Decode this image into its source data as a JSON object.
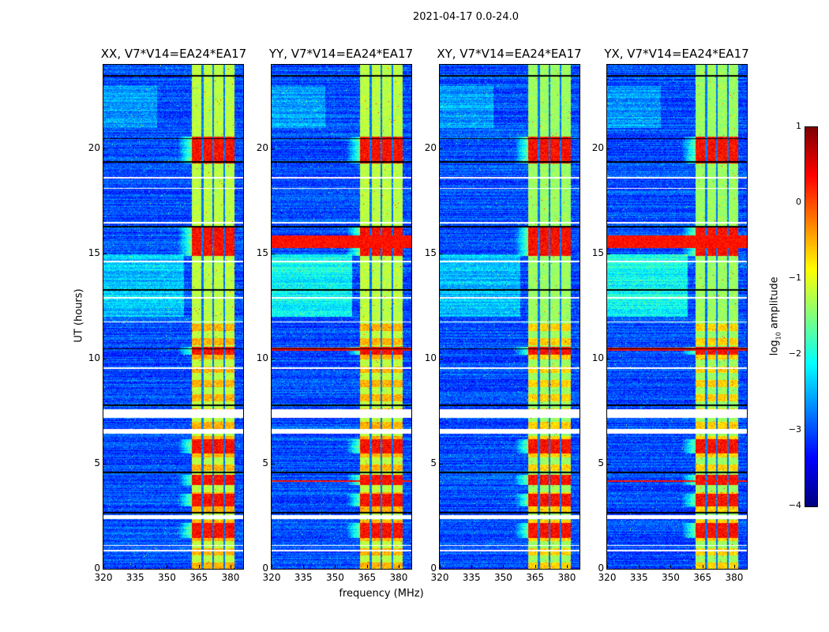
{
  "chart_data": {
    "type": "heatmap",
    "title": "2021-04-17 0.0-24.0",
    "xlabel": "frequency (MHz)",
    "ylabel": "UT (hours)",
    "xlim": [
      320,
      386
    ],
    "ylim": [
      0,
      24
    ],
    "xticks": [
      "320",
      "335",
      "350",
      "365",
      "380"
    ],
    "xtick_values": [
      320,
      335,
      350,
      365,
      380
    ],
    "yticks": [
      "0",
      "5",
      "10",
      "15",
      "20"
    ],
    "ytick_values": [
      0,
      5,
      10,
      15,
      20
    ],
    "panels": [
      {
        "title": "XX, V7*V14=EA24*EA17",
        "pol": "XX",
        "broadband_rfi_hours": []
      },
      {
        "title": "YY, V7*V14=EA24*EA17",
        "pol": "YY",
        "broadband_rfi_hours": [
          [
            15.3,
            15.9
          ],
          [
            10.4,
            10.55
          ],
          [
            4.15,
            4.25
          ]
        ]
      },
      {
        "title": "XY, V7*V14=EA24*EA17",
        "pol": "XY",
        "broadband_rfi_hours": []
      },
      {
        "title": "YX, V7*V14=EA24*EA17",
        "pol": "YX",
        "broadband_rfi_hours": [
          [
            15.3,
            15.9
          ],
          [
            10.4,
            10.55
          ],
          [
            4.15,
            4.25
          ]
        ]
      }
    ],
    "bright_bands_mhz": [
      [
        361.7,
        366.2
      ],
      [
        367.0,
        371.4
      ],
      [
        372.2,
        376.6
      ],
      [
        377.4,
        381.8
      ]
    ],
    "strong_rfi_hours": [
      [
        19.3,
        20.6
      ],
      [
        14.9,
        16.3
      ],
      [
        10.2,
        10.6
      ],
      [
        3.0,
        3.6
      ],
      [
        4.0,
        4.5
      ],
      [
        5.5,
        6.2
      ],
      [
        1.5,
        2.2
      ]
    ],
    "flagged_hours": [
      [
        7.2,
        7.62
      ],
      [
        6.45,
        6.68
      ],
      [
        2.37,
        2.58
      ],
      [
        0.85,
        0.92
      ],
      [
        1.1,
        1.16
      ],
      [
        18.6,
        18.68
      ],
      [
        18.1,
        18.15
      ],
      [
        16.45,
        16.52
      ],
      [
        14.6,
        14.68
      ],
      [
        12.9,
        12.96
      ],
      [
        11.75,
        11.8
      ],
      [
        9.55,
        9.6
      ]
    ],
    "dark_row_hours": [
      23.5,
      20.5,
      19.4,
      16.3,
      13.3,
      10.5,
      7.8,
      4.6,
      2.7
    ],
    "colorbar": {
      "label": "log10 amplitude",
      "label_base": "log",
      "label_sub": "10",
      "label_rest": " amplitude",
      "range": [
        -4,
        1
      ],
      "ticks": [
        "1",
        "0",
        "−1",
        "−2",
        "−3",
        "−4"
      ],
      "tick_values": [
        1,
        0,
        -1,
        -2,
        -3,
        -4
      ],
      "colormap": "jet"
    }
  }
}
